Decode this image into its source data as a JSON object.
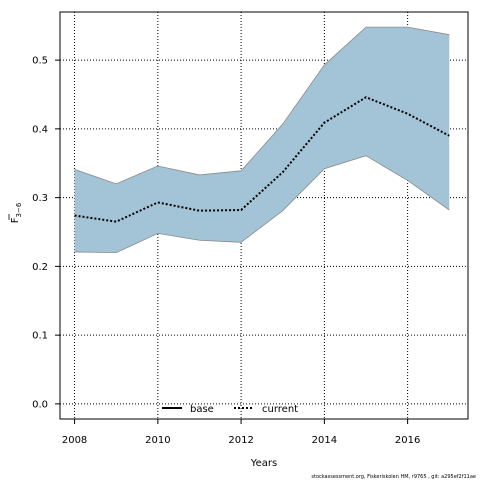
{
  "chart_data": {
    "type": "line",
    "xlabel": "Years",
    "ylabel_main": "F",
    "ylabel_sub": "3−6",
    "xlim": [
      2007.65,
      2017.45
    ],
    "ylim": [
      -0.022,
      0.57
    ],
    "x_ticks": [
      2008,
      2010,
      2012,
      2014,
      2016
    ],
    "y_ticks": [
      0.0,
      0.1,
      0.2,
      0.3,
      0.4,
      0.5
    ],
    "x_tick_labels": [
      "2008",
      "2010",
      "2012",
      "2014",
      "2016"
    ],
    "y_tick_labels": [
      "0.0",
      "0.1",
      "0.2",
      "0.3",
      "0.4",
      "0.5"
    ],
    "grid": true,
    "legend_position": "bottom-center",
    "years": [
      2008,
      2009,
      2010,
      2011,
      2012,
      2013,
      2014,
      2015,
      2016,
      2017
    ],
    "band": {
      "color": "#a3c4d6",
      "upper": [
        0.341,
        0.32,
        0.346,
        0.333,
        0.339,
        0.407,
        0.493,
        0.548,
        0.548,
        0.537
      ],
      "lower": [
        0.221,
        0.22,
        0.248,
        0.238,
        0.235,
        0.281,
        0.342,
        0.361,
        0.325,
        0.282
      ]
    },
    "series": [
      {
        "name": "base",
        "style": "solid",
        "color": "#000000",
        "values": []
      },
      {
        "name": "current",
        "style": "dotted",
        "color": "#000000",
        "values": [
          0.274,
          0.265,
          0.293,
          0.281,
          0.282,
          0.337,
          0.409,
          0.446,
          0.422,
          0.39
        ]
      }
    ]
  },
  "footer": "stockassessment.org, Fiskeriskolen HM, r9765 , git: a295ef2f11ae"
}
